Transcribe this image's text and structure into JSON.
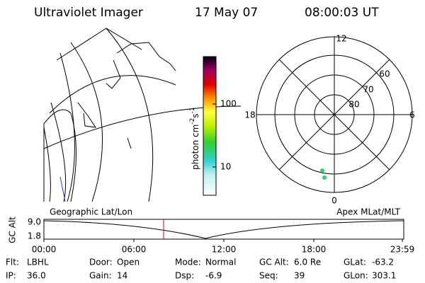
{
  "header": {
    "instrument": "Ultraviolet Imager",
    "date": "17 May 07",
    "time": "08:00:03 UT"
  },
  "colorbar": {
    "unit": "photon cm",
    "exp1": "-2",
    "unit2": "s",
    "exp2": "-1",
    "ticks": [
      "100",
      "10"
    ]
  },
  "polar": {
    "labels": {
      "top": "12",
      "bottom": "0",
      "left": "18",
      "right": "6"
    },
    "rings": [
      "60",
      "70",
      "80"
    ]
  },
  "timeline": {
    "left_title": "Geographic Lat/Lon",
    "right_title": "Apex MLat/MLT",
    "axis_label": "GC Alt",
    "y_high": "9.0",
    "y_low": "1.8",
    "times": [
      "00:00",
      "06:00",
      "12:00",
      "18:00",
      "23:59"
    ]
  },
  "footer": [
    [
      {
        "label": "Flt:",
        "value": "LBHL"
      },
      {
        "label": "Door:",
        "value": "Open"
      },
      {
        "label": "Mode:",
        "value": "Normal"
      },
      {
        "label": "GC Alt:",
        "value": "6.0 Re"
      },
      {
        "label": "GLat:",
        "value": "-63.2"
      }
    ],
    [
      {
        "label": "IP:",
        "value": "36.0"
      },
      {
        "label": "Gain:",
        "value": "14"
      },
      {
        "label": "Dsp:",
        "value": "-6.9"
      },
      {
        "label": "Seq:",
        "value": "39"
      },
      {
        "label": "GLon:",
        "value": "303.1"
      }
    ]
  ]
}
